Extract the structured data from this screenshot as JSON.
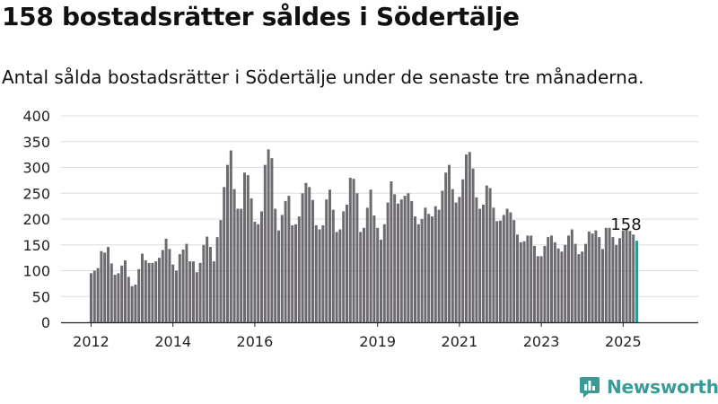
{
  "title": "158 bostadsrätter såldes i Södertälje",
  "subtitle": "Antal sålda bostadsrätter i Södertälje under de senaste tre månaderna.",
  "brand": {
    "name": "Newsworthy",
    "color": "#3a9a97"
  },
  "colors": {
    "bar": "#6d6b70",
    "highlight": "#2a9d8f",
    "grid": "#dddddd"
  },
  "chart_data": {
    "type": "bar",
    "title": "158 bostadsrätter såldes i Södertälje",
    "ylim": [
      0,
      400
    ],
    "yticks": [
      0,
      50,
      100,
      150,
      200,
      250,
      300,
      350,
      400
    ],
    "xticks": [
      "2012",
      "2014",
      "2016",
      "2019",
      "2021",
      "2023",
      "2025"
    ],
    "grid": true,
    "legend": "none",
    "highlight_label": "158",
    "series": [
      {
        "values": [
          95,
          100,
          105,
          138,
          135,
          146,
          114,
          92,
          95,
          110,
          120,
          88,
          70,
          73,
          103,
          133,
          120,
          115,
          115,
          118,
          125,
          140,
          162,
          142,
          112,
          100,
          132,
          141,
          152,
          118,
          118,
          97,
          115,
          150,
          166,
          146,
          118,
          165,
          198,
          262,
          305,
          333,
          258,
          220,
          220,
          290,
          285,
          240,
          195,
          190,
          215,
          305,
          335,
          318,
          220,
          178,
          208,
          235,
          245,
          188,
          190,
          205,
          250,
          270,
          262,
          237,
          188,
          180,
          188,
          238,
          257,
          218,
          175,
          180,
          215,
          228,
          280,
          278,
          250,
          175,
          183,
          222,
          257,
          207,
          183,
          160,
          190,
          232,
          273,
          248,
          230,
          238,
          245,
          250,
          235,
          205,
          190,
          200,
          222,
          210,
          205,
          225,
          218,
          255,
          290,
          305,
          258,
          232,
          243,
          277,
          325,
          330,
          298,
          242,
          220,
          228,
          265,
          260,
          222,
          196,
          197,
          208,
          220,
          213,
          198,
          170,
          155,
          157,
          168,
          168,
          148,
          128,
          128,
          148,
          165,
          168,
          155,
          143,
          137,
          150,
          168,
          180,
          152,
          132,
          137,
          152,
          176,
          172,
          178,
          165,
          142,
          183,
          183,
          165,
          150,
          163,
          178,
          182,
          177,
          170,
          158
        ]
      }
    ]
  }
}
